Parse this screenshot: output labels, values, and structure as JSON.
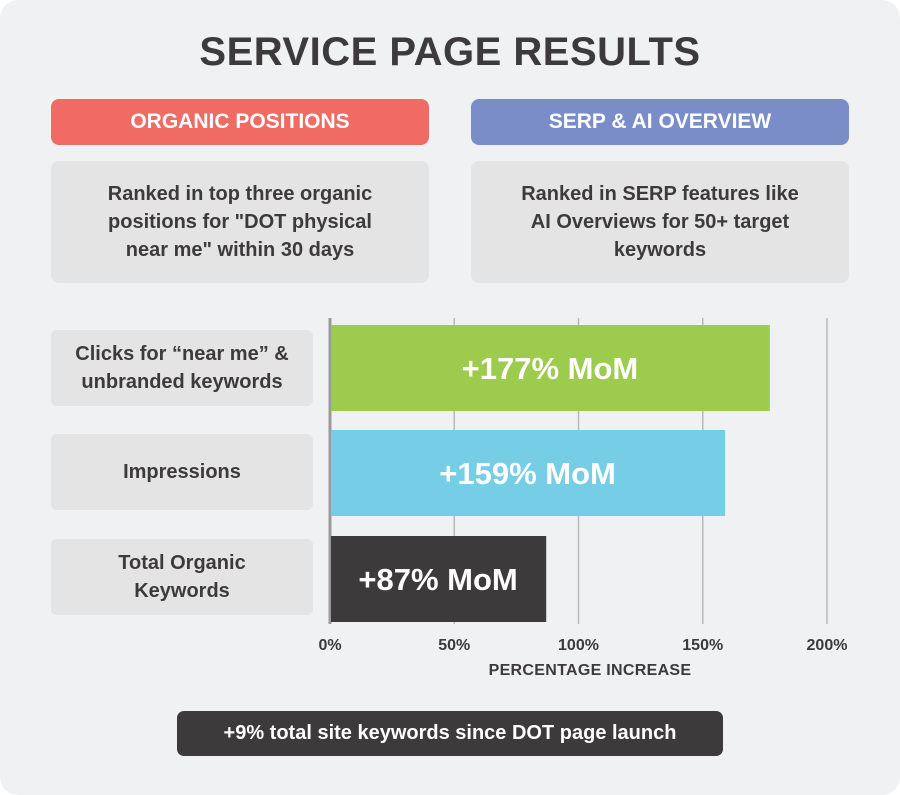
{
  "title": "SERVICE PAGE RESULTS",
  "cards": {
    "left": {
      "header": "ORGANIC POSITIONS",
      "text": "Ranked in top three organic positions for \"DOT physical near me\" within 30 days",
      "color": "#ef6b63"
    },
    "right": {
      "header": "SERP & AI OVERVIEW",
      "text": "Ranked in SERP features like AI Overviews for 50+ target keywords",
      "color": "#7b8dc8"
    }
  },
  "chart_data": {
    "type": "bar",
    "orientation": "horizontal",
    "categories": [
      "Clicks for “near me” & unbranded keywords",
      "Impressions",
      "Total Organic Keywords"
    ],
    "values": [
      177,
      159,
      87
    ],
    "bar_labels": [
      "+177% MoM",
      "+159% MoM",
      "+87% MoM"
    ],
    "bar_colors": [
      "#9dcb4e",
      "#76cde6",
      "#3d3a3b"
    ],
    "xlabel": "PERCENTAGE INCREASE",
    "xlim": [
      0,
      200
    ],
    "xticks": [
      0,
      50,
      100,
      150,
      200
    ],
    "xtick_labels": [
      "0%",
      "50%",
      "100%",
      "150%",
      "200%"
    ],
    "grid": true
  },
  "footer": "+9% total site keywords since DOT page launch"
}
